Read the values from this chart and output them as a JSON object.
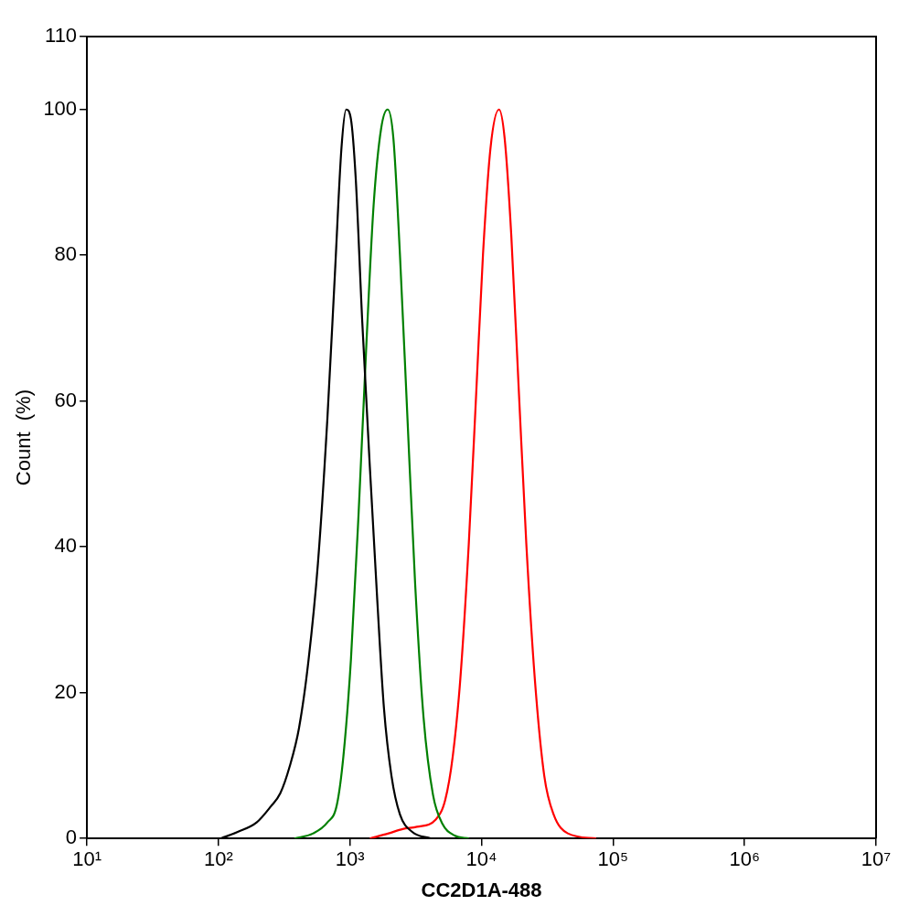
{
  "chart_data": {
    "type": "line",
    "xlabel": "CC2D1A-488",
    "ylabel": "Count  (%)",
    "log": "x",
    "grid": false,
    "legend": false,
    "marker": "none",
    "xlim": [
      10,
      10000000
    ],
    "xticks": [
      {
        "value": 10,
        "label": "10¹"
      },
      {
        "value": 100,
        "label": "10²"
      },
      {
        "value": 1000,
        "label": "10³"
      },
      {
        "value": 10000,
        "label": "10⁴"
      },
      {
        "value": 100000,
        "label": "10⁵"
      },
      {
        "value": 1000000,
        "label": "10⁶"
      },
      {
        "value": 10000000,
        "label": "10⁷"
      }
    ],
    "ylim": [
      0,
      110
    ],
    "yticks": [
      0,
      20,
      40,
      60,
      80,
      100,
      110
    ],
    "series": [
      {
        "color": "#000000",
        "x": [
          104,
          140,
          195,
          250,
          295,
          348,
          410,
          484,
          570,
          673,
          768,
          861,
          935,
          1016,
          1104,
          1239,
          1415,
          1614,
          1811,
          2066,
          2397,
          2972,
          4130
        ],
        "values": [
          0,
          0.9,
          2.2,
          4.4,
          6.2,
          9.9,
          15.2,
          24.5,
          37.7,
          57.6,
          77.5,
          94.7,
          100,
          98.7,
          90.7,
          70.9,
          51.0,
          32.5,
          17.9,
          8.6,
          3.3,
          0.9,
          0
        ]
      },
      {
        "color": "#008000",
        "x": [
          378,
          525,
          673,
          794,
          891,
          1016,
          1161,
          1325,
          1511,
          1725,
          1936,
          2138,
          2397,
          2735,
          3124,
          3624,
          4275,
          5047,
          6252,
          8000
        ],
        "values": [
          0,
          0.7,
          2.2,
          4.6,
          11.3,
          24.5,
          44.4,
          66.9,
          86.8,
          97.4,
          100,
          96.0,
          80.1,
          57.6,
          35.1,
          16.6,
          6.0,
          2.0,
          0.4,
          0
        ]
      },
      {
        "color": "#ff0000",
        "x": [
          1415,
          1967,
          2518,
          3228,
          4487,
          5297,
          6046,
          6900,
          8000,
          9140,
          10260,
          11700,
          13580,
          15000,
          16830,
          19190,
          21910,
          25420,
          29990,
          35320,
          45260,
          74300
        ],
        "values": [
          0,
          0.7,
          1.3,
          1.6,
          2.6,
          5.3,
          11.3,
          21.9,
          40.4,
          61.6,
          80.1,
          94.7,
          100,
          96.0,
          82.8,
          61.6,
          40.4,
          21.9,
          8.6,
          3.3,
          0.7,
          0
        ]
      }
    ]
  }
}
